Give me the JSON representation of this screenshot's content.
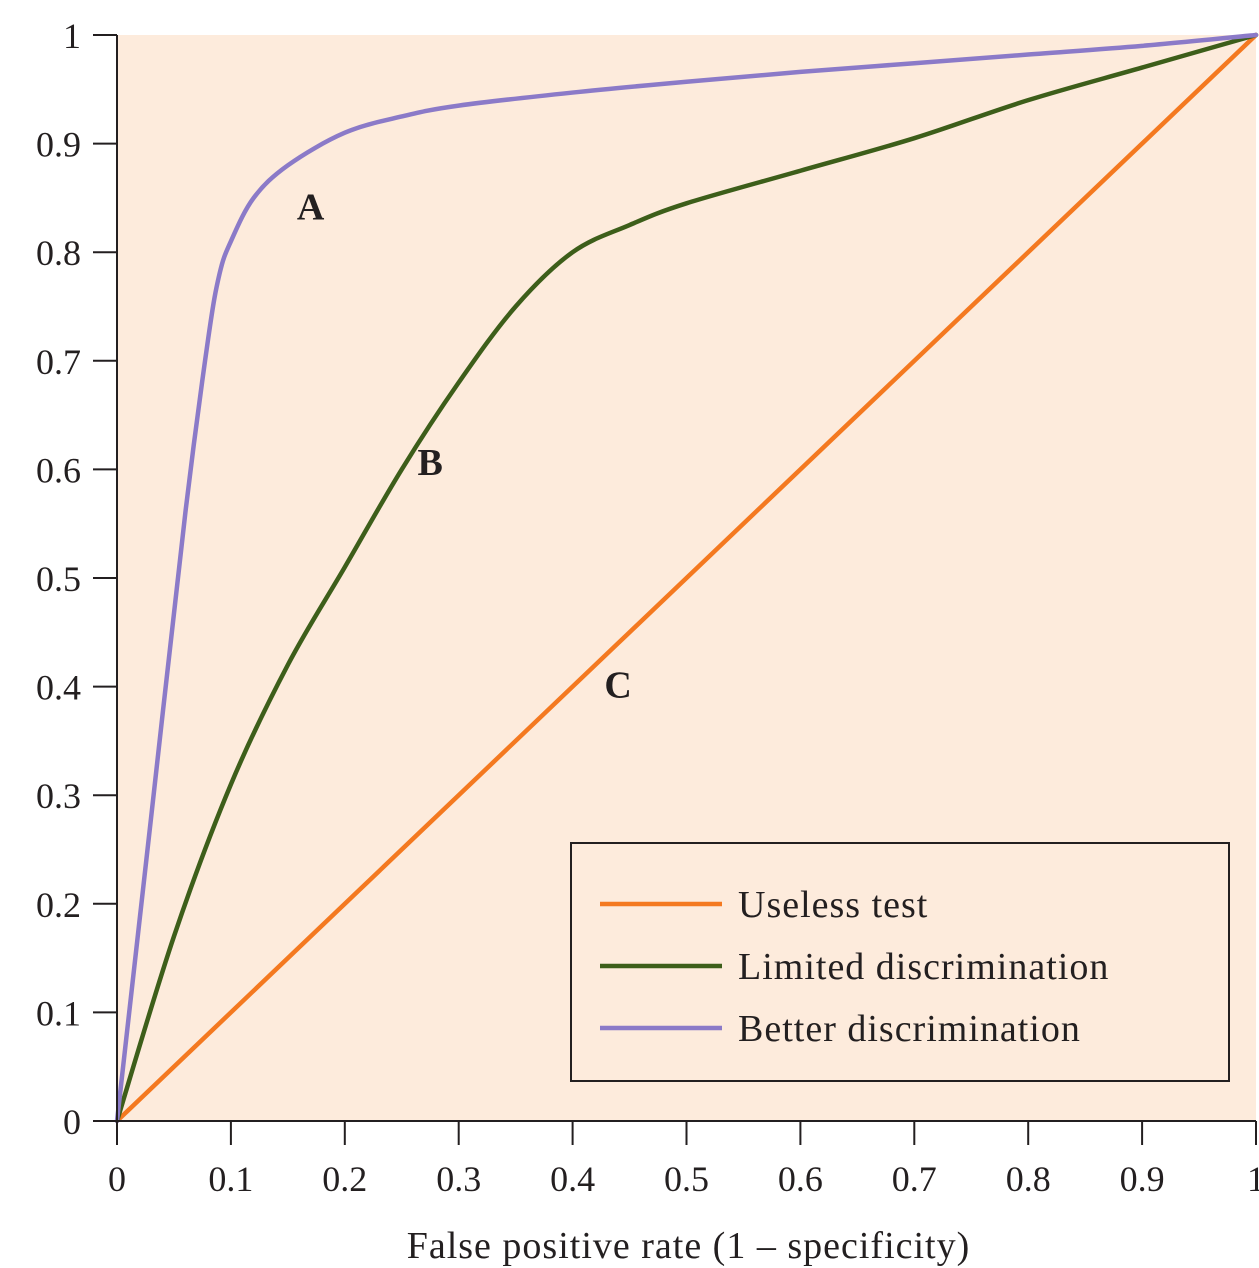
{
  "chart_data": {
    "type": "line",
    "title": "",
    "xlabel": "False positive rate (1 – specificity)",
    "ylabel": "",
    "xlim": [
      0,
      1
    ],
    "ylim": [
      0,
      1
    ],
    "x_ticks": [
      "0",
      "0.1",
      "0.2",
      "0.3",
      "0.4",
      "0.5",
      "0.6",
      "0.7",
      "0.8",
      "0.9",
      "1"
    ],
    "y_ticks": [
      "0",
      "0.1",
      "0.2",
      "0.3",
      "0.4",
      "0.5",
      "0.6",
      "0.7",
      "0.8",
      "0.9",
      "1"
    ],
    "grid": false,
    "background_color": "#fdebdc",
    "legend_position": "bottom-right",
    "series": [
      {
        "name": "Useless test",
        "label": "C",
        "color": "#f47920",
        "x": [
          0,
          0.44,
          1
        ],
        "y": [
          0,
          0.44,
          1
        ]
      },
      {
        "name": "Limited discrimination",
        "label": "B",
        "color": "#3d5e1a",
        "x": [
          0,
          0.05,
          0.1,
          0.15,
          0.2,
          0.25,
          0.3,
          0.35,
          0.4,
          0.45,
          0.5,
          0.6,
          0.7,
          0.8,
          0.9,
          1
        ],
        "y": [
          0,
          0.17,
          0.31,
          0.42,
          0.51,
          0.6,
          0.68,
          0.75,
          0.8,
          0.825,
          0.845,
          0.875,
          0.905,
          0.94,
          0.97,
          1
        ]
      },
      {
        "name": "Better discrimination",
        "label": "A",
        "color": "#8b7ac8",
        "x": [
          0,
          0.03,
          0.06,
          0.08,
          0.09,
          0.1,
          0.12,
          0.15,
          0.2,
          0.25,
          0.3,
          0.4,
          0.5,
          0.6,
          0.7,
          0.8,
          0.9,
          1
        ],
        "y": [
          0,
          0.28,
          0.56,
          0.72,
          0.78,
          0.81,
          0.85,
          0.88,
          0.91,
          0.925,
          0.935,
          0.947,
          0.957,
          0.966,
          0.974,
          0.982,
          0.99,
          1
        ]
      }
    ],
    "annotations": [
      {
        "text": "A",
        "x": 0.17,
        "y": 0.83
      },
      {
        "text": "B",
        "x": 0.275,
        "y": 0.595
      },
      {
        "text": "C",
        "x": 0.44,
        "y": 0.39
      }
    ]
  }
}
